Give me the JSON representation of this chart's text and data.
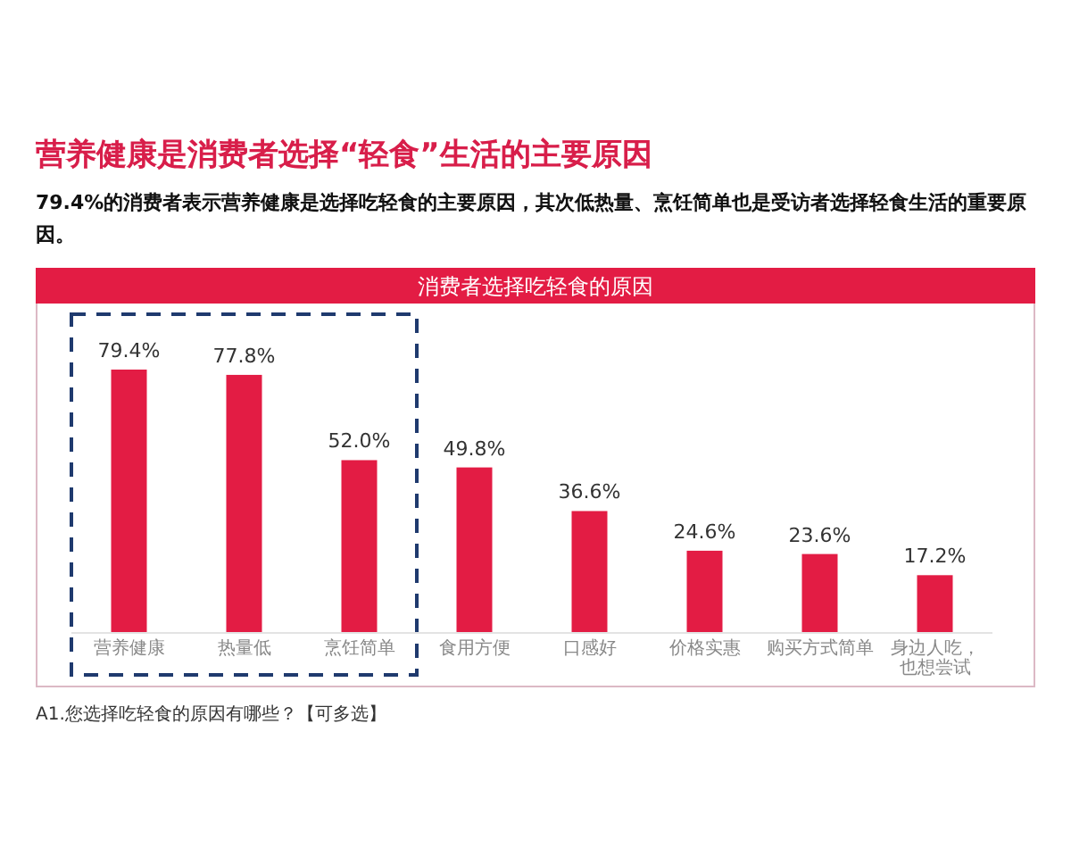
{
  "chart_data": {
    "type": "bar",
    "title": "营养健康是消费者选择“轻食”生活的主要原因",
    "subtitle": "79.4%的消费者表示营养健康是选择吃轻食的主要原因，其次低热量、烹饪简单也是受访者选择轻食生活的重要原因。",
    "annotations": [
      "消费者选择吃轻食的原因",
      "A1.您选择吃轻食的原因有哪些？【可多选】"
    ],
    "categories": [
      "营养健康",
      "热量低",
      "烹饪简单",
      "食用方便",
      "口感好",
      "价格实惠",
      "购买方式简单",
      "身边人吃，也想尝试"
    ],
    "values": [
      79.4,
      77.8,
      52.0,
      49.8,
      36.6,
      24.6,
      23.6,
      17.2
    ],
    "value_labels": [
      "79.4%",
      "77.8%",
      "52.0%",
      "49.8%",
      "36.6%",
      "24.6%",
      "23.6%",
      "17.2%"
    ],
    "color": "#e31c44"
  }
}
